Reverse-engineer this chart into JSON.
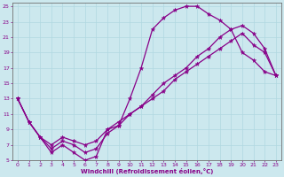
{
  "xlabel": "Windchill (Refroidissement éolien,°C)",
  "xlim": [
    -0.5,
    23.5
  ],
  "ylim": [
    5,
    25.5
  ],
  "xticks": [
    0,
    1,
    2,
    3,
    4,
    5,
    6,
    7,
    8,
    9,
    10,
    11,
    12,
    13,
    14,
    15,
    16,
    17,
    18,
    19,
    20,
    21,
    22,
    23
  ],
  "yticks": [
    5,
    7,
    9,
    11,
    13,
    15,
    17,
    19,
    21,
    23,
    25
  ],
  "bg_color": "#cce8ee",
  "grid_color": "#b0d8e0",
  "line_color": "#880088",
  "line1_x": [
    0,
    1,
    2,
    3,
    4,
    5,
    6,
    7,
    8,
    9,
    10,
    11,
    12,
    13,
    14,
    15,
    16,
    17,
    18,
    19,
    20,
    21,
    22,
    23
  ],
  "line1_y": [
    13,
    10,
    8,
    6,
    7,
    6,
    5,
    5.5,
    9,
    9.5,
    13,
    17,
    22,
    23.5,
    24.5,
    25,
    25,
    24,
    23.2,
    22,
    19,
    18,
    16.5,
    16
  ],
  "line2_x": [
    0,
    1,
    2,
    3,
    4,
    5,
    6,
    7,
    8,
    9,
    10,
    11,
    12,
    13,
    14,
    15,
    16,
    17,
    18,
    19,
    20,
    21,
    22,
    23
  ],
  "line2_y": [
    13,
    10,
    8,
    6.5,
    7.5,
    7,
    6,
    6.5,
    8.5,
    9.5,
    11,
    12,
    13.5,
    15,
    16,
    17,
    18.5,
    19.5,
    21,
    22,
    22.5,
    21.5,
    19.5,
    16
  ],
  "line3_x": [
    0,
    1,
    2,
    3,
    4,
    5,
    6,
    7,
    8,
    9,
    10,
    11,
    12,
    13,
    14,
    15,
    16,
    17,
    18,
    19,
    20,
    21,
    22,
    23
  ],
  "line3_y": [
    13,
    10,
    8,
    7,
    8,
    7.5,
    7,
    7.5,
    9,
    10,
    11,
    12,
    13,
    14,
    15.5,
    16.5,
    17.5,
    18.5,
    19.5,
    20.5,
    21.5,
    20,
    19,
    16
  ]
}
